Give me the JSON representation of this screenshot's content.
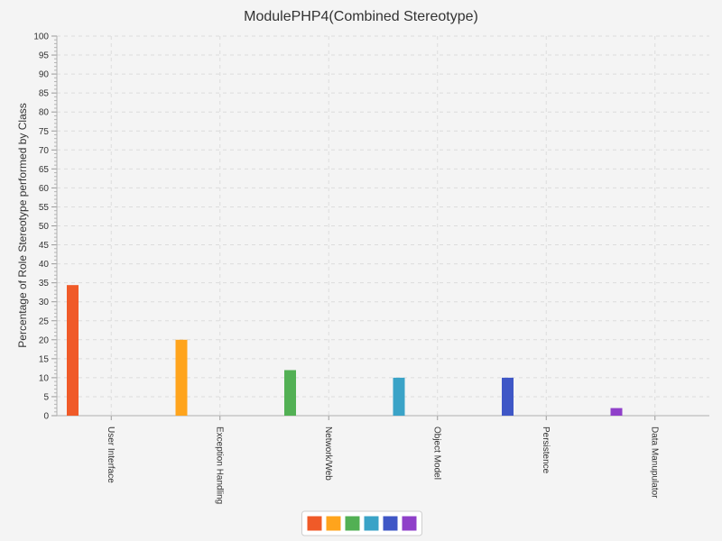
{
  "chart_data": {
    "type": "bar",
    "title": "ModulePHP4(Combined Stereotype)",
    "xlabel": "",
    "ylabel": "Percentage of Role Stereotype performed by Class",
    "ylim": [
      0,
      100
    ],
    "ytick_step": 5,
    "grid": true,
    "legend_position": "bottom-center",
    "categories": [
      "User Interface",
      "Exception Handling",
      "Network/Web",
      "Object Model",
      "Persistence",
      "Data Manupulator"
    ],
    "series": [
      {
        "color": "#f05a28",
        "values": [
          34.4,
          0,
          0,
          0,
          0,
          0
        ]
      },
      {
        "color": "#ffa41c",
        "values": [
          0,
          20,
          0,
          0,
          0,
          0
        ]
      },
      {
        "color": "#52b054",
        "values": [
          0,
          0,
          12,
          0,
          0,
          0
        ]
      },
      {
        "color": "#3aa3c7",
        "values": [
          0,
          0,
          0,
          10,
          0,
          0
        ]
      },
      {
        "color": "#3f57c6",
        "values": [
          0,
          0,
          0,
          0,
          10,
          0
        ]
      },
      {
        "color": "#8f40c9",
        "values": [
          0,
          0,
          0,
          0,
          0,
          2
        ]
      }
    ]
  }
}
